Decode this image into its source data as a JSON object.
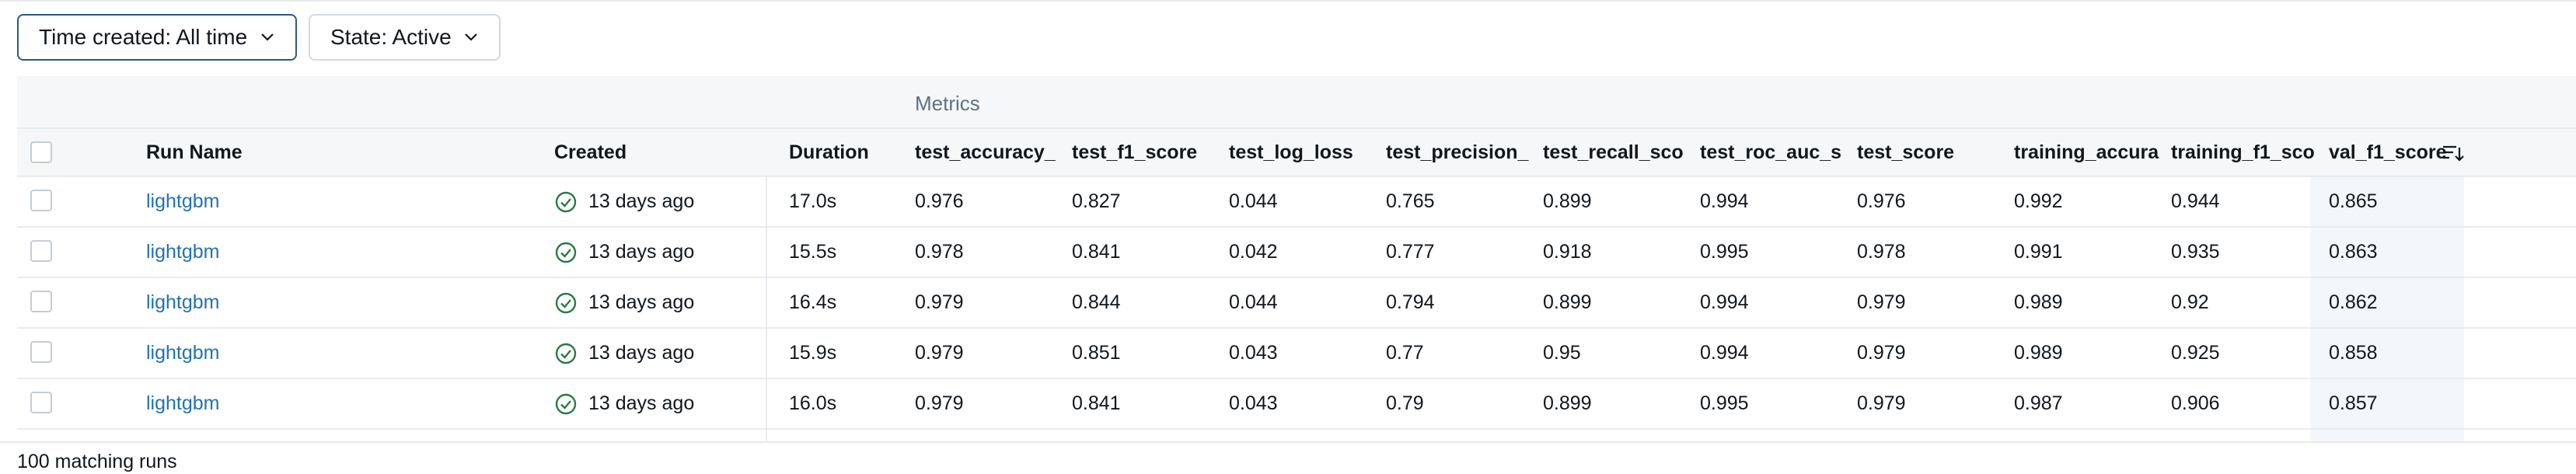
{
  "filters": {
    "time_created": "Time created: All time",
    "state": "State: Active"
  },
  "table": {
    "group_header": "Metrics",
    "columns": [
      "Run Name",
      "Created",
      "Duration",
      "test_accuracy_",
      "test_f1_score",
      "test_log_loss",
      "test_precision_",
      "test_recall_sco",
      "test_roc_auc_s",
      "test_score",
      "training_accura",
      "training_f1_sco",
      "val_f1_score"
    ],
    "rows": [
      {
        "run_name": "lightgbm",
        "created": "13 days ago",
        "duration": "17.0s",
        "test_accuracy": "0.976",
        "test_f1_score": "0.827",
        "test_log_loss": "0.044",
        "test_precision": "0.765",
        "test_recall": "0.899",
        "test_roc_auc": "0.994",
        "test_score": "0.976",
        "training_accuracy": "0.992",
        "training_f1_score": "0.944",
        "val_f1_score": "0.865"
      },
      {
        "run_name": "lightgbm",
        "created": "13 days ago",
        "duration": "15.5s",
        "test_accuracy": "0.978",
        "test_f1_score": "0.841",
        "test_log_loss": "0.042",
        "test_precision": "0.777",
        "test_recall": "0.918",
        "test_roc_auc": "0.995",
        "test_score": "0.978",
        "training_accuracy": "0.991",
        "training_f1_score": "0.935",
        "val_f1_score": "0.863"
      },
      {
        "run_name": "lightgbm",
        "created": "13 days ago",
        "duration": "16.4s",
        "test_accuracy": "0.979",
        "test_f1_score": "0.844",
        "test_log_loss": "0.044",
        "test_precision": "0.794",
        "test_recall": "0.899",
        "test_roc_auc": "0.994",
        "test_score": "0.979",
        "training_accuracy": "0.989",
        "training_f1_score": "0.92",
        "val_f1_score": "0.862"
      },
      {
        "run_name": "lightgbm",
        "created": "13 days ago",
        "duration": "15.9s",
        "test_accuracy": "0.979",
        "test_f1_score": "0.851",
        "test_log_loss": "0.043",
        "test_precision": "0.77",
        "test_recall": "0.95",
        "test_roc_auc": "0.994",
        "test_score": "0.979",
        "training_accuracy": "0.989",
        "training_f1_score": "0.925",
        "val_f1_score": "0.858"
      },
      {
        "run_name": "lightgbm",
        "created": "13 days ago",
        "duration": "16.0s",
        "test_accuracy": "0.979",
        "test_f1_score": "0.841",
        "test_log_loss": "0.043",
        "test_precision": "0.79",
        "test_recall": "0.899",
        "test_roc_auc": "0.995",
        "test_score": "0.979",
        "training_accuracy": "0.987",
        "training_f1_score": "0.906",
        "val_f1_score": "0.857"
      }
    ]
  },
  "footer": {
    "count_text": "100 matching runs"
  },
  "icons": {
    "status": "check-circle-icon",
    "sort": "sort-descending-icon",
    "dropdown": "chevron-down-icon"
  },
  "colors": {
    "link": "#2272b4",
    "success": "#277c43",
    "header_bg": "#f5f7f9",
    "filter_border_active": "#2a5a8a"
  }
}
